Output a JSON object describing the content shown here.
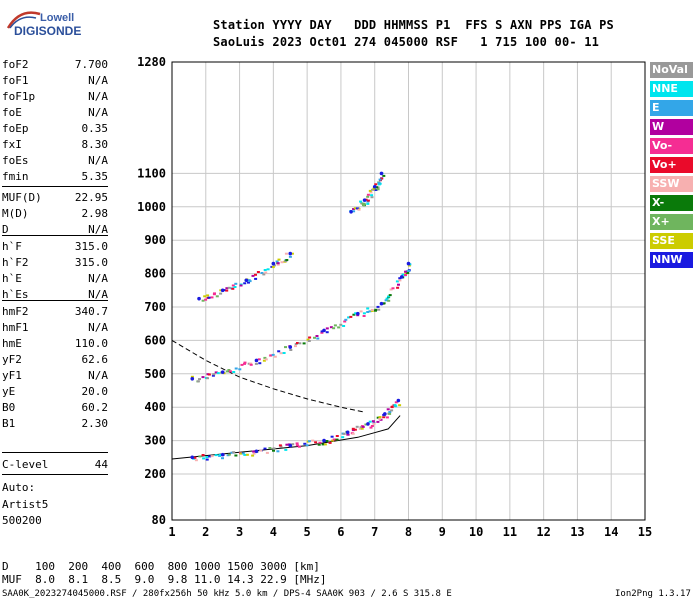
{
  "logo": {
    "line1": "Lowell",
    "line2": "DIGISONDE"
  },
  "header": {
    "line1": "Station YYYY DAY   DDD HHMMSS P1  FFS S AXN PPS IGA PS",
    "line2": "SaoLuis 2023 Oct01 274 045000 RSF   1 715 100 00- 11"
  },
  "params": [
    {
      "name": "foF2",
      "value": "7.700"
    },
    {
      "name": "foF1",
      "value": "N/A"
    },
    {
      "name": "foF1p",
      "value": "N/A"
    },
    {
      "name": "foE",
      "value": "N/A"
    },
    {
      "name": "foEp",
      "value": "0.35"
    },
    {
      "name": "fxI",
      "value": "8.30"
    },
    {
      "name": "foEs",
      "value": "N/A"
    },
    {
      "name": "fmin",
      "value": "5.35"
    },
    {
      "name": "MUF(D)",
      "value": "22.95"
    },
    {
      "name": "M(D)",
      "value": "2.98"
    },
    {
      "name": "D",
      "value": "N/A"
    },
    {
      "name": "h`F",
      "value": "315.0"
    },
    {
      "name": "h`F2",
      "value": "315.0"
    },
    {
      "name": "h`E",
      "value": "N/A"
    },
    {
      "name": "h`Es",
      "value": "N/A"
    },
    {
      "name": "hmF2",
      "value": "340.7"
    },
    {
      "name": "hmF1",
      "value": "N/A"
    },
    {
      "name": "hmE",
      "value": "110.0"
    },
    {
      "name": "yF2",
      "value": "62.6"
    },
    {
      "name": "yF1",
      "value": "N/A"
    },
    {
      "name": "yE",
      "value": "20.0"
    },
    {
      "name": "B0",
      "value": "60.2"
    },
    {
      "name": "B1",
      "value": "2.30"
    },
    {
      "name": "C-level",
      "value": "44"
    }
  ],
  "auto": {
    "line1": "Auto:",
    "line2": "Artist5",
    "line3": "500200"
  },
  "legend": [
    {
      "label": "NoVal",
      "color": "#999999"
    },
    {
      "label": "NNE",
      "color": "#00e5ee"
    },
    {
      "label": "E",
      "color": "#33a6e8"
    },
    {
      "label": "W",
      "color": "#b1009f"
    },
    {
      "label": "Vo-",
      "color": "#f52d93"
    },
    {
      "label": "Vo+",
      "color": "#ea0a2a"
    },
    {
      "label": "SSW",
      "color": "#f7b0b0"
    },
    {
      "label": "X-",
      "color": "#0a7a0a"
    },
    {
      "label": "X+",
      "color": "#6fb55e"
    },
    {
      "label": "SSE",
      "color": "#cccc00"
    },
    {
      "label": "NNW",
      "color": "#1a1ae0"
    }
  ],
  "bottom": {
    "d_line": "D    100  200  400  600  800 1000 1500 3000 [km]",
    "muf_line": "MUF  8.0  8.1  8.5  9.0  9.8 11.0 14.3 22.9 [MHz]"
  },
  "footer": {
    "left": "SAA0K_2023274045000.RSF / 280fx256h 50 kHz 5.0 km / DPS-4 SAA0K 903 / 2.6 S 315.8 E",
    "right": "Ion2Png 1.3.17"
  },
  "chart_data": {
    "type": "scatter",
    "title": "",
    "xlabel": "",
    "ylabel": "",
    "xlim": [
      1,
      15
    ],
    "ylim": [
      80,
      1280
    ],
    "x_ticks": [
      1,
      2,
      3,
      4,
      5,
      6,
      7,
      8,
      9,
      10,
      11,
      12,
      13,
      14,
      15
    ],
    "y_ticks": [
      80,
      200,
      300,
      400,
      500,
      600,
      700,
      800,
      900,
      1000,
      1100,
      1280
    ],
    "grid": true,
    "traces": [
      {
        "name": "O-trace F2",
        "color": "#1a1ae0",
        "points": [
          [
            1.6,
            250
          ],
          [
            2.5,
            258
          ],
          [
            3.5,
            268
          ],
          [
            4.5,
            285
          ],
          [
            5.5,
            300
          ],
          [
            6.2,
            325
          ],
          [
            6.8,
            350
          ],
          [
            7.3,
            380
          ],
          [
            7.7,
            420
          ]
        ]
      },
      {
        "name": "second hop",
        "color": "#1a1ae0",
        "points": [
          [
            1.6,
            485
          ],
          [
            2.5,
            505
          ],
          [
            3.5,
            540
          ],
          [
            4.5,
            580
          ],
          [
            5.5,
            630
          ],
          [
            6.5,
            680
          ],
          [
            7.2,
            710
          ],
          [
            7.8,
            790
          ],
          [
            8.0,
            830
          ]
        ]
      },
      {
        "name": "third hop",
        "color": "#1a1ae0",
        "points": [
          [
            1.8,
            725
          ],
          [
            2.5,
            750
          ],
          [
            3.2,
            780
          ],
          [
            4.0,
            830
          ],
          [
            4.5,
            860
          ]
        ]
      },
      {
        "name": "fourth hop",
        "color": "#1a1ae0",
        "points": [
          [
            6.3,
            985
          ],
          [
            6.7,
            1020
          ],
          [
            7.0,
            1060
          ],
          [
            7.2,
            1100
          ]
        ]
      }
    ],
    "profile_solid": {
      "points": [
        [
          1.0,
          245
        ],
        [
          3.0,
          265
        ],
        [
          5.0,
          285
        ],
        [
          6.5,
          310
        ],
        [
          7.4,
          335
        ],
        [
          7.75,
          375
        ]
      ]
    },
    "profile_dashed": {
      "points": [
        [
          1.0,
          600
        ],
        [
          2.0,
          540
        ],
        [
          3.0,
          490
        ],
        [
          4.0,
          455
        ],
        [
          5.0,
          425
        ],
        [
          6.0,
          400
        ],
        [
          6.7,
          385
        ]
      ]
    }
  }
}
